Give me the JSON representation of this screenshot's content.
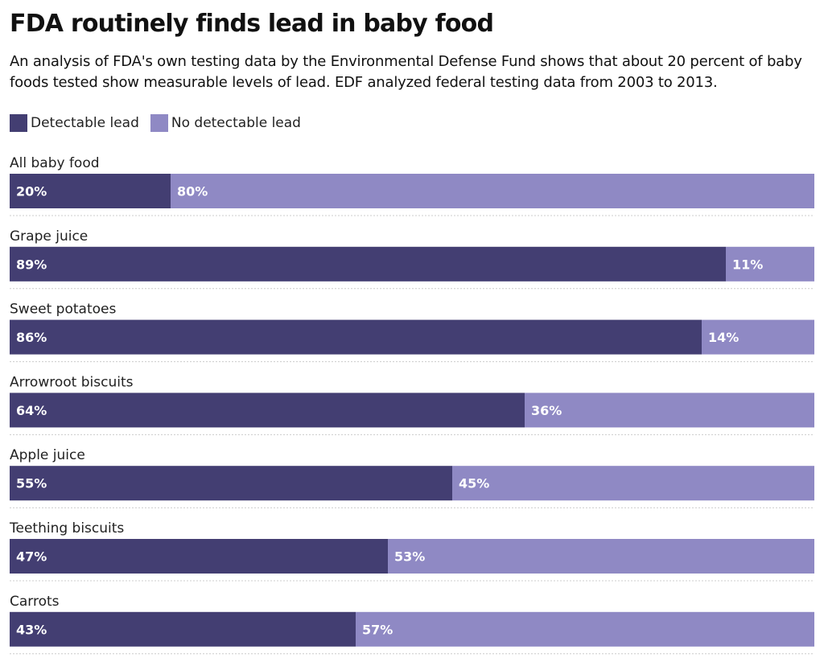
{
  "title": "FDA routinely finds lead in baby food",
  "subtitle": "An analysis of FDA's own testing data by the Environmental Defense Fund shows that about 20 percent of baby foods tested show measurable levels of lead. EDF analyzed federal testing data from 2003 to 2013.",
  "colors": {
    "detectable": "#433e72",
    "not_detectable": "#8f89c4",
    "separator": "#cccccc",
    "label_text": "#ffffff"
  },
  "legend": [
    {
      "label": "Detectable lead",
      "color_key": "detectable"
    },
    {
      "label": "No detectable lead",
      "color_key": "not_detectable"
    }
  ],
  "chart_data": {
    "type": "bar",
    "orientation": "horizontal",
    "stacked": true,
    "percent_stacked": true,
    "title": "FDA routinely finds lead in baby food",
    "xlim": [
      0,
      100
    ],
    "grid": false,
    "legend_position": "top-left",
    "categories": [
      "All baby food",
      "Grape juice",
      "Sweet potatoes",
      "Arrowroot biscuits",
      "Apple juice",
      "Teething biscuits",
      "Carrots"
    ],
    "series": [
      {
        "name": "Detectable lead",
        "values": [
          20,
          89,
          86,
          64,
          55,
          47,
          43
        ],
        "labels": [
          "20%",
          "89%",
          "86%",
          "64%",
          "55%",
          "47%",
          "43%"
        ]
      },
      {
        "name": "No detectable lead",
        "values": [
          80,
          11,
          14,
          36,
          45,
          53,
          57
        ],
        "labels": [
          "80%",
          "11%",
          "14%",
          "36%",
          "45%",
          "53%",
          "57%"
        ]
      }
    ]
  }
}
